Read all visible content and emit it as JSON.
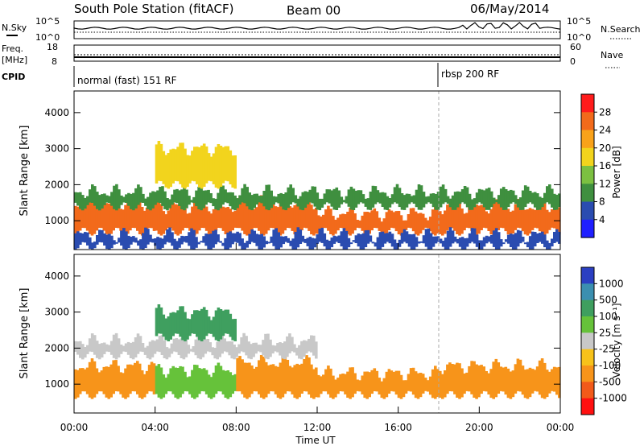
{
  "header": {
    "station": "South Pole Station (fitACF)",
    "beam": "Beam 00",
    "date": "06/May/2014"
  },
  "summary_panels": {
    "nsky_label": "N.Sky",
    "nsearch_label": "N.Search",
    "freq_label": "Freq.",
    "freq_unit": "[MHz]",
    "nave_label": "Nave",
    "cpid_label": "CPID",
    "noise_ticks_left": [
      "10^5",
      "10^0"
    ],
    "noise_ticks_right": [
      "10^5",
      "10^0"
    ],
    "freq_ticks": [
      "18",
      "8"
    ],
    "nave_ticks": [
      "60",
      "0"
    ],
    "cpid_segments": [
      {
        "name": "normal (fast) 151 RF",
        "start_hour": 0,
        "end_hour": 18
      },
      {
        "name": "rbsp 200 RF",
        "start_hour": 18,
        "end_hour": 24
      }
    ],
    "colors": {
      "line": "#000000"
    }
  },
  "chart_data": [
    {
      "type": "heatmap",
      "panel": "power",
      "ylabel": "Slant Range [km]",
      "ylim": [
        200,
        4600
      ],
      "y_ticks": [
        "1000",
        "2000",
        "3000",
        "4000"
      ],
      "colorbar_label": "Power [dB]",
      "colorbar_ticks": [
        "4",
        "8",
        "12",
        "16",
        "20",
        "24",
        "28"
      ],
      "colorbar_colors": [
        "#1f1fff",
        "#2a4cb0",
        "#3f8f3f",
        "#7cc041",
        "#f2d41d",
        "#f9a21a",
        "#f26a1b",
        "#ff1c1c"
      ],
      "grid": false,
      "bands": [
        {
          "x0": 0,
          "x1": 4,
          "y0": 700,
          "y1": 1500,
          "value": 26
        },
        {
          "x0": 4,
          "x1": 8,
          "y0": 700,
          "y1": 1400,
          "value": 25
        },
        {
          "x0": 8,
          "x1": 12,
          "y0": 700,
          "y1": 1500,
          "value": 27
        },
        {
          "x0": 12,
          "x1": 18,
          "y0": 700,
          "y1": 1200,
          "value": 26
        },
        {
          "x0": 18,
          "x1": 24,
          "y0": 700,
          "y1": 1400,
          "value": 26
        },
        {
          "x0": 0,
          "x1": 24,
          "y0": 1400,
          "y1": 1800,
          "value": 10
        },
        {
          "x0": 4,
          "x1": 8,
          "y0": 2000,
          "y1": 3000,
          "value": 18
        },
        {
          "x0": 0,
          "x1": 24,
          "y0": 300,
          "y1": 600,
          "value": 6
        }
      ]
    },
    {
      "type": "heatmap",
      "panel": "velocity",
      "xlabel": "Time UT",
      "ylabel": "Slant Range [km]",
      "ylim": [
        200,
        4600
      ],
      "y_ticks": [
        "1000",
        "2000",
        "3000",
        "4000"
      ],
      "x_ticks": [
        "00:00",
        "04:00",
        "08:00",
        "12:00",
        "16:00",
        "20:00",
        "00:00"
      ],
      "xlim": [
        0,
        24
      ],
      "colorbar_label": "Velocity [m s⁻¹]",
      "colorbar_ticks": [
        "1000",
        "500",
        "100",
        "25",
        "-25",
        "-100",
        "-500",
        "-1000"
      ],
      "colorbar_colors": [
        "#2b3fc2",
        "#3b8fb0",
        "#3f9f5f",
        "#66c23a",
        "#c8c8c8",
        "#f7c21a",
        "#f7941a",
        "#f25a1a",
        "#ff1010"
      ],
      "grid": false,
      "bands": [
        {
          "x0": 0,
          "x1": 4,
          "y0": 700,
          "y1": 1500,
          "value": -150
        },
        {
          "x0": 4,
          "x1": 8,
          "y0": 700,
          "y1": 1400,
          "value": 80
        },
        {
          "x0": 8,
          "x1": 12,
          "y0": 700,
          "y1": 1600,
          "value": -250
        },
        {
          "x0": 12,
          "x1": 18,
          "y0": 700,
          "y1": 1300,
          "value": -300
        },
        {
          "x0": 18,
          "x1": 24,
          "y0": 700,
          "y1": 1500,
          "value": -200
        },
        {
          "x0": 0,
          "x1": 12,
          "y0": 1800,
          "y1": 2200,
          "value": 0
        },
        {
          "x0": 4,
          "x1": 8,
          "y0": 2300,
          "y1": 3000,
          "value": 120
        }
      ]
    }
  ]
}
